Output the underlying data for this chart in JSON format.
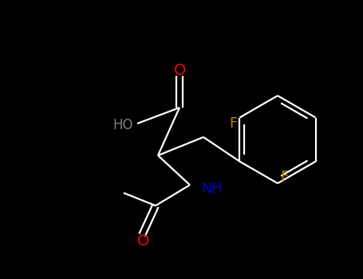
{
  "background_color": "#000000",
  "bond_color": "#ffffff",
  "atom_colors": {
    "O": "#ff0000",
    "N": "#0000cc",
    "F": "#b8860b",
    "HO": "#808080",
    "C": "#ffffff"
  },
  "figsize": [
    4.55,
    3.5
  ],
  "dpi": 100,
  "bond_lw": 1.6,
  "font_size": 13
}
